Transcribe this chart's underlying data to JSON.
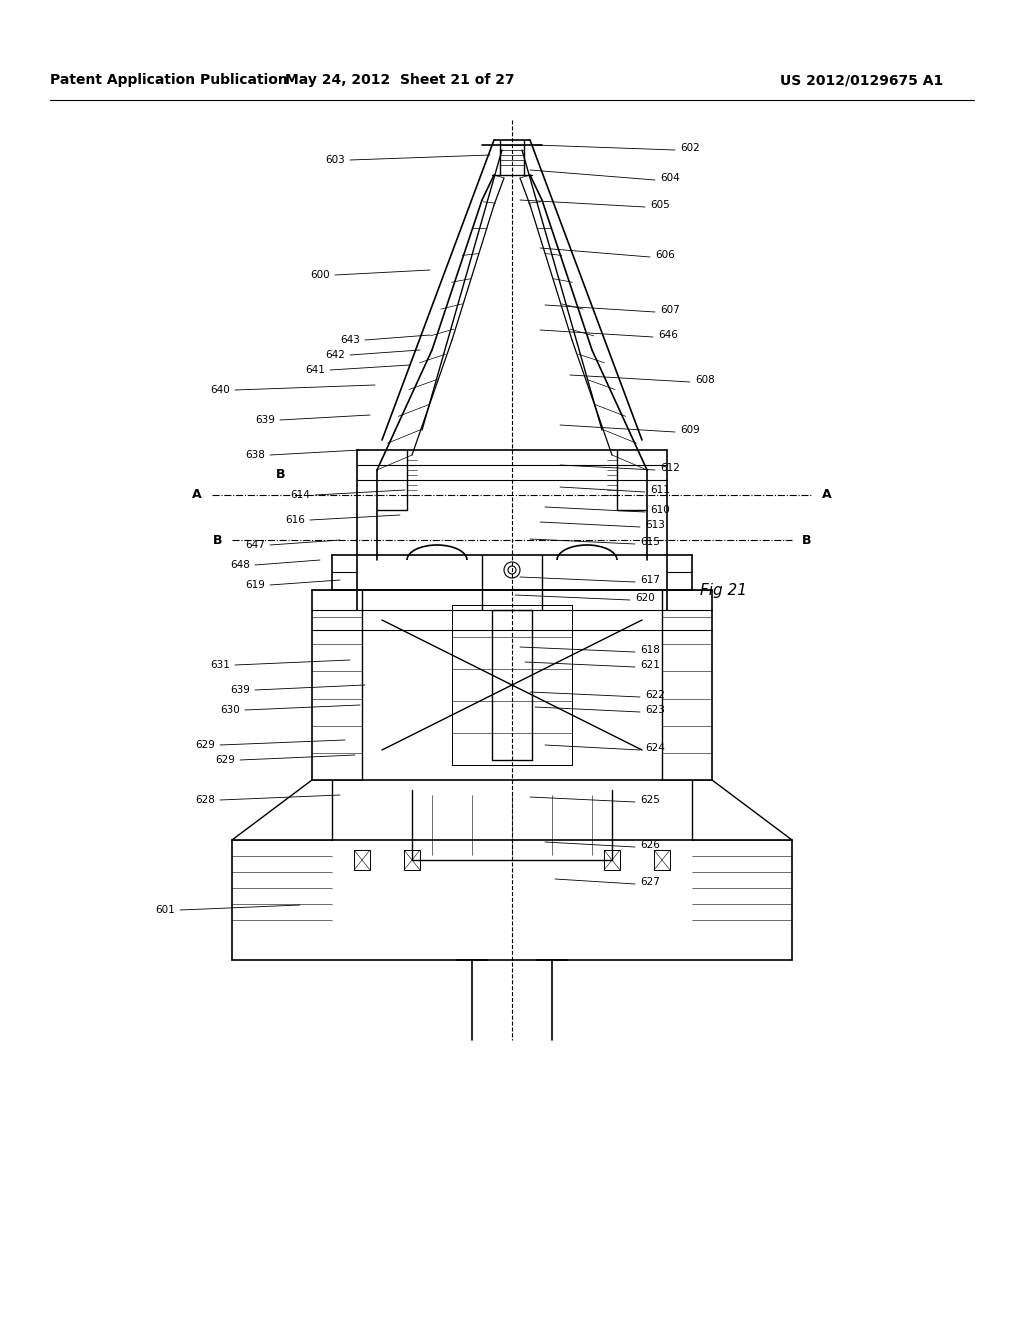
{
  "title": "",
  "header_left": "Patent Application Publication",
  "header_center": "May 24, 2012  Sheet 21 of 27",
  "header_right": "US 2012/0129675 A1",
  "fig_label": "Fig 21",
  "background_color": "#ffffff",
  "line_color": "#000000",
  "header_fontsize": 11,
  "fig_label_fontsize": 12
}
